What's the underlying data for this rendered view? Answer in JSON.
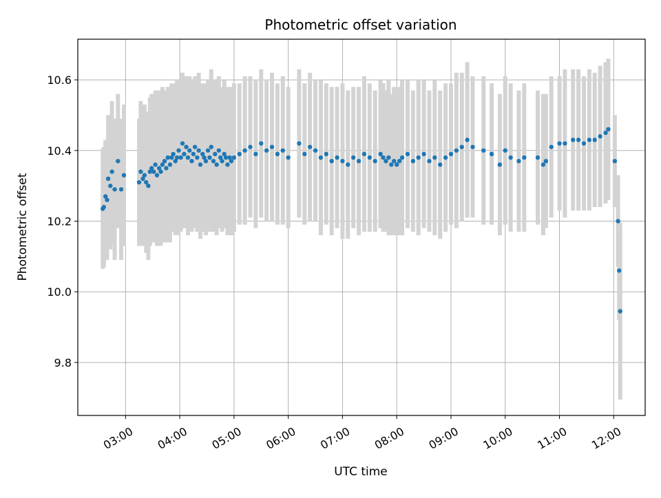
{
  "chart_data": {
    "type": "scatter",
    "title": "Photometric offset variation",
    "xlabel": "UTC time",
    "ylabel": "Photometric offset",
    "x_unit": "hours (UTC)",
    "xlim": [
      2.12,
      12.58
    ],
    "ylim": [
      9.65,
      10.715
    ],
    "x_ticks": [
      {
        "value": 3,
        "label": "03:00"
      },
      {
        "value": 4,
        "label": "04:00"
      },
      {
        "value": 5,
        "label": "05:00"
      },
      {
        "value": 6,
        "label": "06:00"
      },
      {
        "value": 7,
        "label": "07:00"
      },
      {
        "value": 8,
        "label": "08:00"
      },
      {
        "value": 9,
        "label": "09:00"
      },
      {
        "value": 10,
        "label": "10:00"
      },
      {
        "value": 11,
        "label": "11:00"
      },
      {
        "value": 12,
        "label": "12:00"
      }
    ],
    "y_ticks": [
      {
        "value": 9.8,
        "label": "9.8"
      },
      {
        "value": 10.0,
        "label": "10.0"
      },
      {
        "value": 10.2,
        "label": "10.2"
      },
      {
        "value": 10.4,
        "label": "10.4"
      },
      {
        "value": 10.6,
        "label": "10.6"
      }
    ],
    "grid": true,
    "colors": {
      "points": "#1f77b4",
      "errorbars": "#d3d3d3",
      "grid": "#b0b0b0"
    },
    "series": [
      {
        "x": [
          2.58,
          2.6,
          2.63,
          2.66,
          2.68,
          2.72,
          2.75,
          2.8,
          2.86,
          2.92,
          2.97,
          3.25,
          3.28,
          3.32,
          3.35,
          3.38,
          3.42,
          3.45,
          3.48,
          3.52,
          3.55,
          3.58,
          3.62,
          3.65,
          3.68,
          3.72,
          3.75,
          3.78,
          3.82,
          3.85,
          3.88,
          3.92,
          3.95,
          3.98,
          4.02,
          4.05,
          4.08,
          4.12,
          4.15,
          4.18,
          4.22,
          4.25,
          4.28,
          4.32,
          4.35,
          4.38,
          4.42,
          4.45,
          4.48,
          4.52,
          4.55,
          4.58,
          4.62,
          4.65,
          4.68,
          4.72,
          4.75,
          4.78,
          4.82,
          4.85,
          4.88,
          4.92,
          4.95,
          5.0,
          5.1,
          5.2,
          5.3,
          5.4,
          5.5,
          5.6,
          5.7,
          5.8,
          5.9,
          6.0,
          6.2,
          6.3,
          6.4,
          6.5,
          6.6,
          6.7,
          6.8,
          6.9,
          7.0,
          7.1,
          7.2,
          7.3,
          7.4,
          7.5,
          7.6,
          7.7,
          7.75,
          7.8,
          7.85,
          7.9,
          7.95,
          8.0,
          8.05,
          8.1,
          8.2,
          8.3,
          8.4,
          8.5,
          8.6,
          8.7,
          8.8,
          8.9,
          9.0,
          9.1,
          9.2,
          9.3,
          9.4,
          9.6,
          9.75,
          9.9,
          10.0,
          10.1,
          10.25,
          10.35,
          10.6,
          10.7,
          10.75,
          10.85,
          11.0,
          11.1,
          11.25,
          11.35,
          11.45,
          11.55,
          11.65,
          11.75,
          11.85,
          11.9,
          12.02,
          12.08,
          12.1,
          12.12
        ],
        "y": [
          10.235,
          10.24,
          10.27,
          10.26,
          10.32,
          10.3,
          10.34,
          10.29,
          10.37,
          10.29,
          10.33,
          10.31,
          10.34,
          10.32,
          10.33,
          10.31,
          10.3,
          10.34,
          10.35,
          10.34,
          10.36,
          10.33,
          10.35,
          10.34,
          10.36,
          10.37,
          10.35,
          10.38,
          10.36,
          10.38,
          10.39,
          10.37,
          10.38,
          10.4,
          10.38,
          10.42,
          10.39,
          10.41,
          10.38,
          10.4,
          10.37,
          10.39,
          10.41,
          10.38,
          10.4,
          10.36,
          10.39,
          10.38,
          10.37,
          10.4,
          10.38,
          10.41,
          10.37,
          10.39,
          10.36,
          10.4,
          10.38,
          10.37,
          10.39,
          10.38,
          10.36,
          10.38,
          10.37,
          10.38,
          10.39,
          10.4,
          10.41,
          10.39,
          10.42,
          10.4,
          10.41,
          10.39,
          10.4,
          10.38,
          10.42,
          10.39,
          10.41,
          10.4,
          10.38,
          10.39,
          10.37,
          10.38,
          10.37,
          10.36,
          10.38,
          10.37,
          10.39,
          10.38,
          10.37,
          10.39,
          10.38,
          10.37,
          10.38,
          10.36,
          10.37,
          10.36,
          10.37,
          10.38,
          10.39,
          10.37,
          10.38,
          10.39,
          10.37,
          10.38,
          10.36,
          10.38,
          10.39,
          10.4,
          10.41,
          10.43,
          10.41,
          10.4,
          10.39,
          10.36,
          10.4,
          10.38,
          10.37,
          10.38,
          10.38,
          10.36,
          10.37,
          10.41,
          10.42,
          10.42,
          10.43,
          10.43,
          10.42,
          10.43,
          10.43,
          10.44,
          10.45,
          10.46,
          10.37,
          10.2,
          10.06,
          9.945
        ],
        "err": [
          0.17,
          0.17,
          0.16,
          0.17,
          0.18,
          0.18,
          0.2,
          0.2,
          0.19,
          0.2,
          0.2,
          0.18,
          0.2,
          0.19,
          0.2,
          0.2,
          0.21,
          0.21,
          0.21,
          0.2,
          0.21,
          0.2,
          0.22,
          0.21,
          0.22,
          0.2,
          0.21,
          0.2,
          0.22,
          0.21,
          0.2,
          0.21,
          0.22,
          0.2,
          0.21,
          0.2,
          0.21,
          0.2,
          0.22,
          0.21,
          0.2,
          0.21,
          0.2,
          0.21,
          0.22,
          0.21,
          0.2,
          0.21,
          0.21,
          0.2,
          0.21,
          0.22,
          0.2,
          0.21,
          0.2,
          0.21,
          0.2,
          0.2,
          0.21,
          0.2,
          0.2,
          0.2,
          0.21,
          0.21,
          0.2,
          0.21,
          0.2,
          0.21,
          0.21,
          0.2,
          0.21,
          0.2,
          0.21,
          0.2,
          0.21,
          0.2,
          0.21,
          0.2,
          0.22,
          0.2,
          0.21,
          0.2,
          0.22,
          0.21,
          0.2,
          0.21,
          0.22,
          0.21,
          0.2,
          0.21,
          0.21,
          0.2,
          0.22,
          0.2,
          0.21,
          0.2,
          0.21,
          0.22,
          0.21,
          0.2,
          0.22,
          0.21,
          0.2,
          0.22,
          0.21,
          0.21,
          0.2,
          0.22,
          0.21,
          0.22,
          0.2,
          0.21,
          0.2,
          0.2,
          0.21,
          0.21,
          0.2,
          0.21,
          0.19,
          0.2,
          0.19,
          0.2,
          0.19,
          0.21,
          0.2,
          0.2,
          0.19,
          0.2,
          0.19,
          0.2,
          0.2,
          0.2,
          0.13,
          0.13,
          0.14,
          0.25
        ]
      }
    ]
  }
}
